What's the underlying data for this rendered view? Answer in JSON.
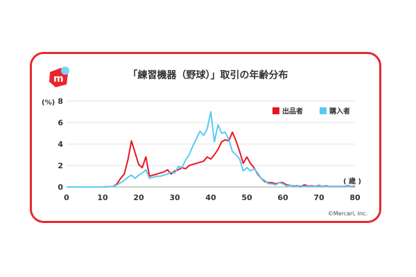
{
  "title": "「練習機器（野球）」取引の年齢分布",
  "credit": "©Mercari, Inc.",
  "logo_letter": "m",
  "colors": {
    "border": "#e8262d",
    "seller": "#e8141c",
    "buyer": "#5ac8f5",
    "logo": "#e8262d",
    "logo_dot": "#7dd3f7"
  },
  "chart_data": {
    "type": "line",
    "title": "「練習機器（野球）」取引の年齢分布",
    "ylabel": "(%)",
    "xlabel": "( 歳 )",
    "xlim": [
      0,
      80
    ],
    "ylim": [
      0,
      8
    ],
    "xticks": [
      0,
      10,
      20,
      30,
      40,
      50,
      60,
      70,
      80
    ],
    "yticks": [
      0,
      2,
      4,
      6,
      8
    ],
    "grid": true,
    "legend_position": "top-right",
    "series": [
      {
        "name": "出品者",
        "color": "#e8141c",
        "x": [
          0,
          10,
          13,
          14,
          15,
          16,
          17,
          18,
          19,
          20,
          21,
          22,
          23,
          24,
          25,
          26,
          27,
          28,
          29,
          30,
          31,
          32,
          33,
          34,
          35,
          36,
          37,
          38,
          39,
          40,
          41,
          42,
          43,
          44,
          45,
          46,
          47,
          48,
          49,
          50,
          51,
          52,
          53,
          54,
          55,
          56,
          57,
          58,
          59,
          60,
          61,
          62,
          63,
          64,
          65,
          66,
          67,
          68,
          69,
          70,
          71,
          72,
          73,
          74,
          75,
          76,
          77,
          78,
          79,
          80
        ],
        "y": [
          0,
          0,
          0.05,
          0.3,
          0.8,
          1.2,
          2.5,
          4.3,
          3.2,
          2.1,
          1.8,
          2.8,
          1.0,
          1.1,
          1.2,
          1.3,
          1.4,
          1.6,
          1.2,
          1.5,
          1.6,
          1.8,
          1.7,
          2.0,
          2.1,
          2.2,
          2.3,
          2.4,
          2.8,
          2.6,
          3.0,
          3.5,
          4.2,
          4.4,
          4.3,
          5.1,
          4.3,
          3.3,
          2.2,
          2.8,
          2.2,
          1.8,
          1.2,
          0.8,
          0.5,
          0.4,
          0.4,
          0.3,
          0.4,
          0.4,
          0.2,
          0.15,
          0.1,
          0.1,
          0.05,
          0.2,
          0.1,
          0.1,
          0.05,
          0.15,
          0.05,
          0.1,
          0.05,
          0.05,
          0.05,
          0.05,
          0.05,
          0.1,
          0.05,
          0.05
        ]
      },
      {
        "name": "購入者",
        "color": "#5ac8f5",
        "x": [
          0,
          10,
          13,
          14,
          15,
          16,
          17,
          18,
          19,
          20,
          21,
          22,
          23,
          24,
          25,
          26,
          27,
          28,
          29,
          30,
          31,
          32,
          33,
          34,
          35,
          36,
          37,
          38,
          39,
          40,
          41,
          42,
          43,
          44,
          45,
          46,
          47,
          48,
          49,
          50,
          51,
          52,
          53,
          54,
          55,
          56,
          57,
          58,
          59,
          60,
          61,
          62,
          63,
          64,
          65,
          66,
          67,
          68,
          69,
          70,
          71,
          72,
          73,
          74,
          75,
          76,
          77,
          78,
          79,
          80
        ],
        "y": [
          0,
          0,
          0.05,
          0.2,
          0.4,
          0.6,
          0.9,
          1.1,
          0.8,
          1.1,
          1.3,
          1.6,
          0.8,
          0.9,
          1.0,
          1.0,
          1.1,
          1.2,
          1.4,
          1.3,
          1.9,
          1.8,
          2.5,
          3.0,
          3.8,
          4.5,
          5.2,
          4.8,
          5.4,
          7.0,
          4.2,
          5.8,
          5.0,
          5.1,
          4.4,
          3.3,
          3.0,
          2.6,
          1.5,
          1.8,
          1.5,
          1.7,
          1.3,
          0.8,
          0.6,
          0.3,
          0.3,
          0.2,
          0.4,
          0.3,
          0.1,
          0.15,
          0.1,
          0.05,
          0.1,
          0.05,
          0.1,
          0.05,
          0.05,
          0.1,
          0.05,
          0.05,
          0.05,
          0.05,
          0.05,
          0.05,
          0.05,
          0.05,
          0.05,
          0.1
        ]
      }
    ]
  }
}
